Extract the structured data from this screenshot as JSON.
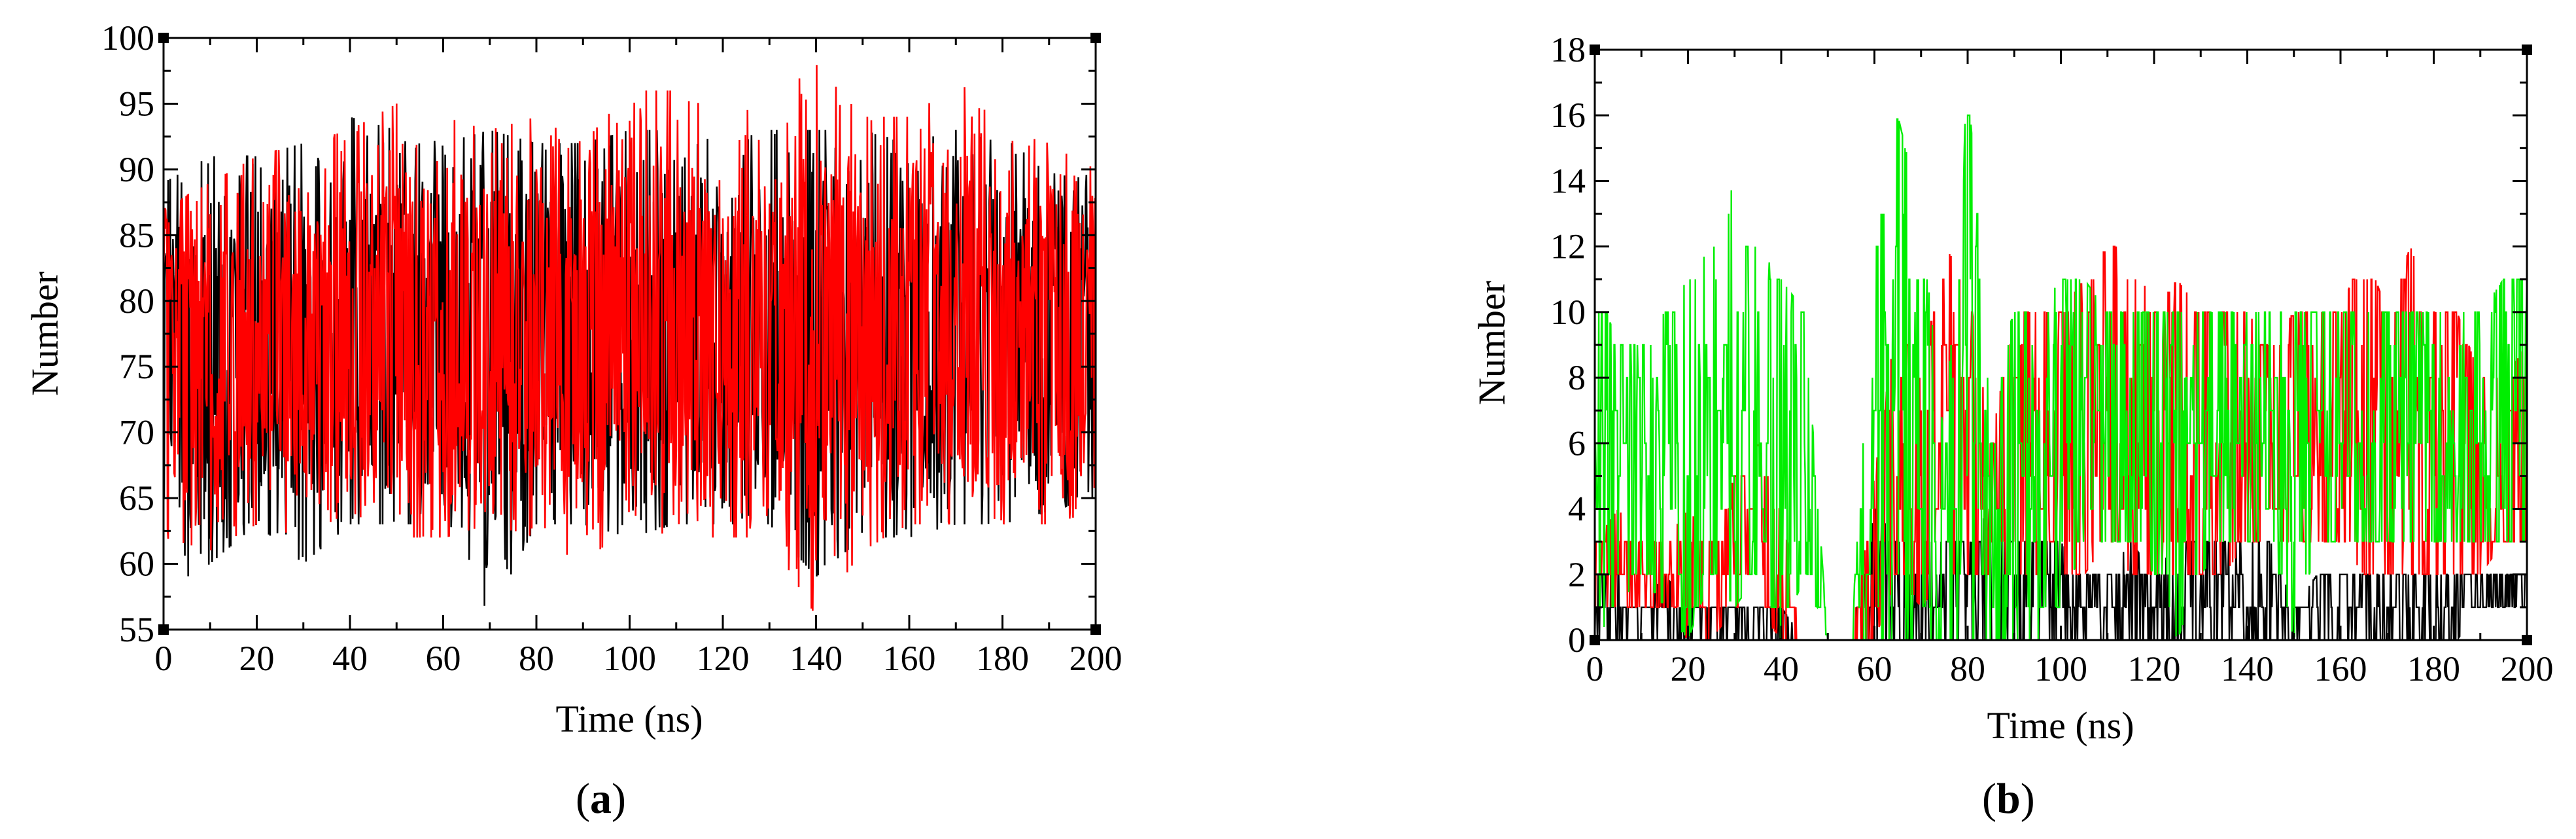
{
  "colors": {
    "black_series": "#000000",
    "red_series": "#ff0000",
    "green_series": "#00ee00"
  },
  "panels": [
    {
      "label_open": "(",
      "label_letter": "a",
      "label_close": ")"
    },
    {
      "label_open": "(",
      "label_letter": "b",
      "label_close": ")"
    }
  ],
  "chart_data": [
    {
      "type": "line",
      "title": "",
      "xlabel": "Time (ns)",
      "ylabel": "Number",
      "xlim": [
        0,
        200
      ],
      "ylim": [
        55,
        100
      ],
      "x_ticks": [
        0,
        20,
        40,
        60,
        80,
        100,
        120,
        140,
        160,
        180,
        200
      ],
      "y_ticks": [
        55,
        60,
        65,
        70,
        75,
        80,
        85,
        90,
        95,
        100
      ],
      "grid": false,
      "legend": "none",
      "series_style": "dense-fluctuation",
      "sampling": "approximate envelope read from plot (min/max per 10 ns), dense noisy trace",
      "series": [
        {
          "color": "#000000",
          "mean": 76.5,
          "x": [
            0,
            10,
            20,
            30,
            40,
            50,
            60,
            70,
            80,
            90,
            100,
            110,
            120,
            130,
            140,
            150,
            160,
            170,
            180,
            190,
            200
          ],
          "min": [
            58,
            60,
            63,
            60,
            63,
            63,
            63,
            56,
            63,
            63,
            62,
            63,
            63,
            63,
            59,
            62,
            62,
            63,
            63,
            64,
            65
          ],
          "max": [
            89,
            91,
            91,
            92,
            94,
            93,
            92,
            93,
            92,
            92,
            93,
            93,
            92,
            93,
            93,
            93,
            92,
            93,
            92,
            92,
            89
          ]
        },
        {
          "color": "#ff0000",
          "mean": 76.5,
          "x": [
            0,
            10,
            20,
            30,
            40,
            50,
            60,
            70,
            80,
            90,
            100,
            110,
            120,
            130,
            140,
            150,
            160,
            170,
            180,
            190,
            200
          ],
          "min": [
            62,
            61,
            63,
            62,
            64,
            62,
            62,
            63,
            62,
            60,
            63,
            62,
            62,
            62,
            56,
            61,
            63,
            63,
            63,
            63,
            64
          ],
          "max": [
            87,
            89,
            91,
            92,
            93,
            95,
            94,
            93,
            94,
            92,
            96,
            96,
            94,
            95,
            98,
            94,
            94,
            97,
            93,
            92,
            90
          ]
        }
      ]
    },
    {
      "type": "line",
      "title": "",
      "xlabel": "Time (ns)",
      "ylabel": "Number",
      "xlim": [
        0,
        200
      ],
      "ylim": [
        0,
        18
      ],
      "x_ticks": [
        0,
        20,
        40,
        60,
        80,
        100,
        120,
        140,
        160,
        180,
        200
      ],
      "y_ticks": [
        0,
        2,
        4,
        6,
        8,
        10,
        12,
        14,
        16,
        18
      ],
      "grid": false,
      "legend": "none",
      "series_style": "dense-steps",
      "sampling": "approximate envelope read from plot (min/max per 5 ns), dense integer-step trace",
      "series": [
        {
          "color": "#000000",
          "x": [
            0,
            5,
            10,
            15,
            20,
            25,
            30,
            35,
            40,
            45,
            50,
            55,
            60,
            65,
            70,
            75,
            80,
            85,
            90,
            95,
            100,
            105,
            110,
            115,
            120,
            125,
            130,
            135,
            140,
            145,
            150,
            155,
            160,
            165,
            170,
            175,
            180,
            185,
            190,
            195,
            200
          ],
          "min": [
            0,
            0,
            0,
            0,
            0,
            0,
            0,
            0,
            0,
            0,
            0,
            0,
            0,
            0,
            0,
            0,
            0,
            0,
            0,
            0,
            0,
            0,
            0,
            0,
            0,
            0,
            0,
            0,
            0,
            0,
            0,
            0,
            0,
            0,
            0,
            0,
            0,
            0,
            1,
            1,
            1
          ],
          "max": [
            2,
            2,
            1,
            2,
            1,
            1,
            1,
            1,
            1,
            0,
            0,
            0,
            4,
            3,
            3,
            3,
            3,
            4,
            3,
            3,
            3,
            2,
            2,
            3,
            2,
            3,
            3,
            3,
            3,
            3,
            1,
            2,
            2,
            2,
            2,
            2,
            2,
            2,
            2,
            2,
            2
          ]
        },
        {
          "color": "#ff0000",
          "x": [
            0,
            5,
            10,
            15,
            20,
            25,
            30,
            35,
            40,
            45,
            50,
            55,
            60,
            65,
            70,
            75,
            80,
            85,
            90,
            95,
            100,
            105,
            110,
            115,
            120,
            125,
            130,
            135,
            140,
            145,
            150,
            155,
            160,
            165,
            170,
            175,
            180,
            185,
            190,
            195,
            200
          ],
          "min": [
            1,
            1,
            1,
            1,
            0,
            0,
            1,
            1,
            0,
            0,
            0,
            0,
            0,
            2,
            1,
            2,
            2,
            2,
            2,
            2,
            2,
            2,
            3,
            2,
            2,
            2,
            2,
            2,
            3,
            3,
            3,
            3,
            3,
            2,
            2,
            2,
            2,
            2,
            2,
            3,
            3
          ],
          "max": [
            3,
            4,
            3,
            3,
            4,
            3,
            5,
            6,
            4,
            0,
            0,
            0,
            5,
            10,
            8,
            12,
            11,
            6,
            10,
            10,
            10,
            11,
            12,
            12,
            10,
            11,
            10,
            10,
            10,
            9,
            10,
            10,
            10,
            12,
            10,
            12,
            10,
            10,
            8,
            8,
            9
          ]
        },
        {
          "color": "#00ee00",
          "x": [
            0,
            5,
            10,
            15,
            20,
            25,
            30,
            35,
            40,
            45,
            50,
            55,
            60,
            65,
            70,
            75,
            80,
            85,
            90,
            95,
            100,
            105,
            110,
            115,
            120,
            125,
            130,
            135,
            140,
            145,
            150,
            155,
            160,
            165,
            170,
            175,
            180,
            185,
            190,
            195,
            200
          ],
          "min": [
            0,
            1,
            2,
            1,
            0,
            2,
            1,
            2,
            0,
            2,
            0,
            0,
            0,
            0,
            0,
            0,
            0,
            0,
            0,
            0,
            1,
            3,
            3,
            3,
            2,
            0,
            2,
            3,
            3,
            3,
            0,
            3,
            3,
            3,
            3,
            3,
            3,
            3,
            3,
            3,
            3
          ],
          "max": [
            11,
            9,
            9,
            10,
            11,
            12,
            14,
            12,
            11,
            10,
            0,
            0,
            12,
            16,
            13,
            6,
            17,
            8,
            10,
            10,
            11,
            11,
            10,
            10,
            10,
            10,
            10,
            10,
            10,
            10,
            10,
            10,
            10,
            10,
            10,
            10,
            10,
            10,
            10,
            11,
            11
          ]
        }
      ]
    }
  ]
}
